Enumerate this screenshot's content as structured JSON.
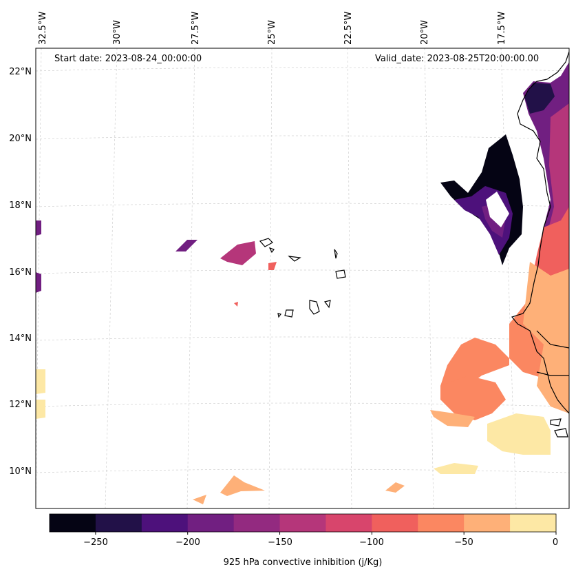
{
  "header": {
    "start_date": "Start date: 2023-08-24_00:00:00",
    "valid_date": "Valid_date: 2023-08-25T20:00:00.00"
  },
  "axes": {
    "lon_labels": [
      "32.5°W",
      "30°W",
      "27.5°W",
      "25°W",
      "22.5°W",
      "20°W",
      "17.5°W"
    ],
    "lat_labels": [
      "22°N",
      "20°N",
      "18°N",
      "16°N",
      "14°N",
      "12°N",
      "10°N"
    ],
    "gridlines": "dashed, light grey"
  },
  "colorbar": {
    "label": "925 hPa convective inhibition (j/Kg)",
    "tick_labels": [
      "−250",
      "−200",
      "−150",
      "−100",
      "−50",
      "0"
    ],
    "levels": [
      -275,
      -250,
      -225,
      -200,
      -175,
      -150,
      -125,
      -100,
      -75,
      -50,
      -25,
      0
    ],
    "colors": [
      "#050414",
      "#221148",
      "#4d117b",
      "#711f81",
      "#932a80",
      "#b5367a",
      "#d8456c",
      "#f0605d",
      "#fb8761",
      "#feb078",
      "#fde8a5"
    ],
    "colormap": "magma"
  },
  "map": {
    "projection": "Lambert conformal",
    "region": "Eastern tropical Atlantic, Cape Verde islands and West African coast",
    "land_outline_color": "#000000"
  }
}
